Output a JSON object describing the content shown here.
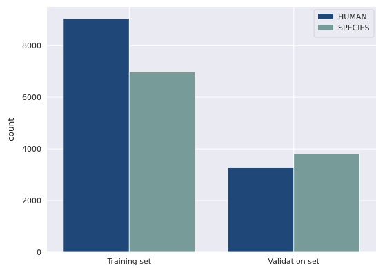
{
  "chart_data": {
    "type": "bar",
    "categories": [
      "Training set",
      "Validation set"
    ],
    "series": [
      {
        "name": "HUMAN",
        "values": [
          9060,
          3270
        ],
        "color": "#1f4778"
      },
      {
        "name": "SPECIES",
        "values": [
          6980,
          3800
        ],
        "color": "#779b98"
      }
    ],
    "xlabel": "",
    "ylabel": "count",
    "yticks": [
      0,
      2000,
      4000,
      6000,
      8000
    ],
    "ytick_labels": [
      "0",
      "2000",
      "4000",
      "6000",
      "8000"
    ],
    "ylim": [
      0,
      9500
    ],
    "grid": true,
    "legend_position": "top-right",
    "background_color": "#eaeaf2",
    "grid_color": "#ffffff"
  }
}
